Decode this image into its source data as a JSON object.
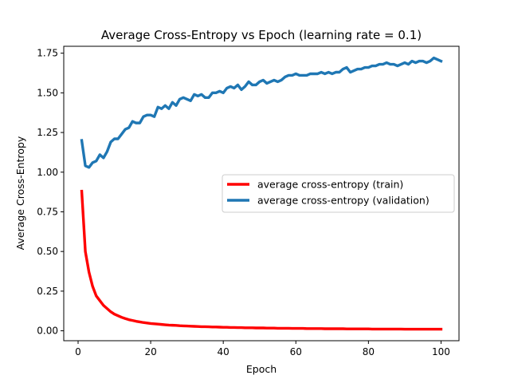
{
  "chart_data": {
    "type": "line",
    "title": "Average Cross-Entropy vs Epoch (learning rate = 0.1)",
    "xlabel": "Epoch",
    "ylabel": "Average Cross-Entropy",
    "xlim": [
      -3.95,
      104.95
    ],
    "ylim": [
      -0.0625,
      1.7935
    ],
    "xticks": [
      0,
      20,
      40,
      60,
      80,
      100
    ],
    "xtick_labels": [
      "0",
      "20",
      "40",
      "60",
      "80",
      "100"
    ],
    "yticks": [
      0.0,
      0.25,
      0.5,
      0.75,
      1.0,
      1.25,
      1.5,
      1.75
    ],
    "ytick_labels": [
      "0.00",
      "0.25",
      "0.50",
      "0.75",
      "1.00",
      "1.25",
      "1.50",
      "1.75"
    ],
    "grid": false,
    "legend_position": "center-right",
    "x": [
      1,
      2,
      3,
      4,
      5,
      6,
      7,
      8,
      9,
      10,
      11,
      12,
      13,
      14,
      15,
      16,
      17,
      18,
      19,
      20,
      21,
      22,
      23,
      24,
      25,
      26,
      27,
      28,
      29,
      30,
      31,
      32,
      33,
      34,
      35,
      36,
      37,
      38,
      39,
      40,
      41,
      42,
      43,
      44,
      45,
      46,
      47,
      48,
      49,
      50,
      51,
      52,
      53,
      54,
      55,
      56,
      57,
      58,
      59,
      60,
      61,
      62,
      63,
      64,
      65,
      66,
      67,
      68,
      69,
      70,
      71,
      72,
      73,
      74,
      75,
      76,
      77,
      78,
      79,
      80,
      81,
      82,
      83,
      84,
      85,
      86,
      87,
      88,
      89,
      90,
      91,
      92,
      93,
      94,
      95,
      96,
      97,
      98,
      99,
      100
    ],
    "series": [
      {
        "name": "average cross-entropy (train)",
        "color": "#ff0000",
        "values": [
          0.88,
          0.5,
          0.37,
          0.28,
          0.22,
          0.19,
          0.16,
          0.14,
          0.12,
          0.105,
          0.095,
          0.085,
          0.077,
          0.07,
          0.065,
          0.06,
          0.056,
          0.052,
          0.049,
          0.046,
          0.044,
          0.042,
          0.04,
          0.038,
          0.036,
          0.035,
          0.034,
          0.032,
          0.031,
          0.03,
          0.029,
          0.028,
          0.027,
          0.026,
          0.026,
          0.025,
          0.024,
          0.024,
          0.023,
          0.022,
          0.022,
          0.021,
          0.021,
          0.02,
          0.02,
          0.019,
          0.019,
          0.019,
          0.018,
          0.018,
          0.018,
          0.017,
          0.017,
          0.017,
          0.016,
          0.016,
          0.016,
          0.016,
          0.015,
          0.015,
          0.015,
          0.015,
          0.014,
          0.014,
          0.014,
          0.014,
          0.014,
          0.013,
          0.013,
          0.013,
          0.013,
          0.013,
          0.013,
          0.012,
          0.012,
          0.012,
          0.012,
          0.012,
          0.012,
          0.012,
          0.011,
          0.011,
          0.011,
          0.011,
          0.011,
          0.011,
          0.011,
          0.011,
          0.011,
          0.01,
          0.01,
          0.01,
          0.01,
          0.01,
          0.01,
          0.01,
          0.01,
          0.01,
          0.01,
          0.01
        ]
      },
      {
        "name": "average cross-entropy (validation)",
        "color": "#1f77b4",
        "values": [
          1.2,
          1.04,
          1.03,
          1.06,
          1.07,
          1.11,
          1.09,
          1.13,
          1.19,
          1.21,
          1.21,
          1.24,
          1.27,
          1.28,
          1.32,
          1.31,
          1.31,
          1.35,
          1.36,
          1.36,
          1.35,
          1.41,
          1.4,
          1.42,
          1.4,
          1.44,
          1.42,
          1.46,
          1.47,
          1.46,
          1.45,
          1.49,
          1.48,
          1.49,
          1.47,
          1.47,
          1.5,
          1.5,
          1.51,
          1.5,
          1.53,
          1.54,
          1.53,
          1.55,
          1.52,
          1.54,
          1.57,
          1.55,
          1.55,
          1.57,
          1.58,
          1.56,
          1.57,
          1.58,
          1.57,
          1.58,
          1.6,
          1.61,
          1.61,
          1.62,
          1.61,
          1.61,
          1.61,
          1.62,
          1.62,
          1.62,
          1.63,
          1.62,
          1.63,
          1.62,
          1.63,
          1.63,
          1.65,
          1.66,
          1.63,
          1.64,
          1.65,
          1.65,
          1.66,
          1.66,
          1.67,
          1.67,
          1.68,
          1.68,
          1.69,
          1.68,
          1.68,
          1.67,
          1.68,
          1.69,
          1.68,
          1.7,
          1.69,
          1.7,
          1.7,
          1.69,
          1.7,
          1.72,
          1.71,
          1.7
        ]
      }
    ]
  }
}
